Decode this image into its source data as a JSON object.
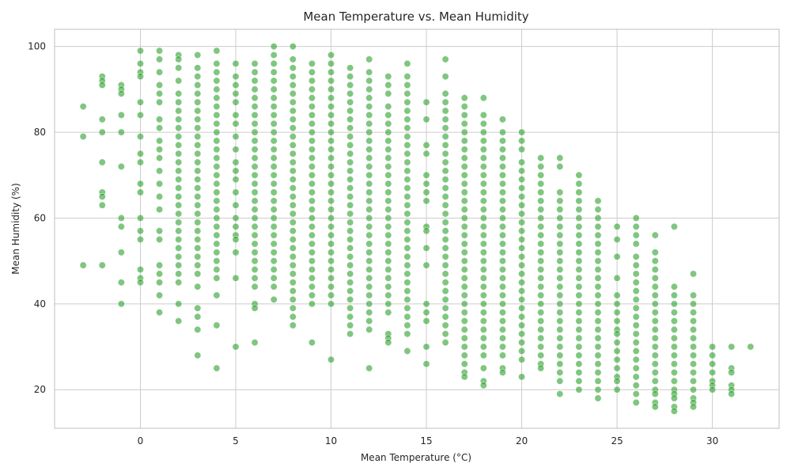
{
  "chart_data": {
    "type": "scatter",
    "title": "Mean Temperature vs. Mean Humidity",
    "xlabel": "Mean Temperature (°C)",
    "ylabel": "Mean Humidity (%)",
    "xlim": [
      -4.5,
      33.5
    ],
    "ylim": [
      11,
      104
    ],
    "xticks": [
      0,
      5,
      10,
      15,
      20,
      25,
      30
    ],
    "yticks": [
      20,
      40,
      60,
      80,
      100
    ],
    "grid": true,
    "legend": "none",
    "point_color": "#2ca02c",
    "point_alpha": 0.6,
    "columns": [
      {
        "x": -3,
        "y": [
          86,
          79,
          49
        ]
      },
      {
        "x": -2,
        "y": [
          93,
          92,
          91,
          83,
          80,
          73,
          66,
          65,
          63,
          49
        ]
      },
      {
        "x": -1,
        "y": [
          91,
          90,
          89,
          84,
          80,
          72,
          60,
          58,
          52,
          45,
          40
        ]
      },
      {
        "x": 0,
        "y": [
          99,
          96,
          94,
          93,
          87,
          84,
          79,
          75,
          73,
          68,
          66,
          60,
          57,
          55,
          48,
          46,
          45
        ]
      },
      {
        "x": 1,
        "y": [
          99,
          97,
          94,
          91,
          89,
          87,
          83,
          81,
          78,
          76,
          74,
          71,
          68,
          65,
          62,
          57,
          55,
          49,
          47,
          45,
          42,
          38
        ]
      },
      {
        "x": 2,
        "y": [
          98,
          97,
          95,
          92,
          89,
          87,
          85,
          83,
          81,
          79,
          77,
          75,
          73,
          71,
          69,
          67,
          65,
          63,
          61,
          59,
          57,
          55,
          53,
          51,
          49,
          47,
          45,
          40,
          36
        ]
      },
      {
        "x": 3,
        "y": [
          98,
          95,
          93,
          91,
          89,
          87,
          85,
          83,
          81,
          79,
          77,
          75,
          73,
          71,
          69,
          67,
          65,
          63,
          61,
          59,
          57,
          55,
          53,
          51,
          49,
          47,
          44,
          39,
          37,
          34,
          28
        ]
      },
      {
        "x": 4,
        "y": [
          99,
          96,
          94,
          92,
          90,
          88,
          86,
          84,
          82,
          80,
          78,
          76,
          74,
          72,
          70,
          68,
          66,
          64,
          62,
          60,
          58,
          56,
          54,
          52,
          50,
          48,
          46,
          42,
          35,
          25
        ]
      },
      {
        "x": 5,
        "y": [
          96,
          93,
          91,
          89,
          87,
          84,
          82,
          79,
          76,
          73,
          71,
          69,
          66,
          63,
          60,
          58,
          56,
          55,
          52,
          46,
          30
        ]
      },
      {
        "x": 6,
        "y": [
          96,
          94,
          92,
          90,
          88,
          86,
          84,
          82,
          80,
          78,
          76,
          74,
          72,
          70,
          68,
          66,
          64,
          62,
          60,
          58,
          56,
          54,
          52,
          50,
          48,
          46,
          44,
          40,
          39,
          31
        ]
      },
      {
        "x": 7,
        "y": [
          100,
          98,
          96,
          94,
          92,
          90,
          88,
          86,
          84,
          82,
          80,
          78,
          76,
          74,
          72,
          70,
          68,
          66,
          64,
          62,
          60,
          58,
          56,
          54,
          52,
          50,
          48,
          46,
          44,
          41
        ]
      },
      {
        "x": 8,
        "y": [
          100,
          97,
          95,
          93,
          91,
          89,
          87,
          85,
          83,
          81,
          79,
          77,
          75,
          73,
          71,
          69,
          67,
          65,
          63,
          61,
          59,
          57,
          55,
          53,
          51,
          49,
          47,
          45,
          43,
          41,
          39,
          37,
          35
        ]
      },
      {
        "x": 9,
        "y": [
          96,
          94,
          92,
          90,
          88,
          86,
          84,
          82,
          80,
          78,
          76,
          74,
          72,
          70,
          68,
          66,
          64,
          62,
          60,
          58,
          56,
          54,
          52,
          50,
          48,
          46,
          44,
          42,
          40,
          31
        ]
      },
      {
        "x": 10,
        "y": [
          98,
          96,
          94,
          92,
          90,
          88,
          86,
          84,
          82,
          80,
          78,
          76,
          74,
          72,
          70,
          68,
          66,
          64,
          62,
          60,
          58,
          56,
          54,
          52,
          50,
          48,
          46,
          44,
          42,
          40,
          27
        ]
      },
      {
        "x": 11,
        "y": [
          95,
          93,
          91,
          89,
          87,
          85,
          83,
          81,
          79,
          77,
          75,
          73,
          71,
          69,
          67,
          65,
          63,
          61,
          59,
          57,
          55,
          53,
          51,
          49,
          47,
          45,
          43,
          41,
          39,
          37,
          35,
          33
        ]
      },
      {
        "x": 12,
        "y": [
          97,
          94,
          92,
          90,
          88,
          86,
          84,
          82,
          80,
          78,
          76,
          74,
          72,
          70,
          68,
          66,
          64,
          62,
          60,
          58,
          56,
          54,
          52,
          50,
          48,
          46,
          44,
          42,
          40,
          38,
          36,
          34,
          25
        ]
      },
      {
        "x": 13,
        "y": [
          93,
          91,
          89,
          86,
          84,
          82,
          80,
          78,
          76,
          74,
          72,
          70,
          68,
          66,
          64,
          62,
          60,
          58,
          56,
          54,
          52,
          50,
          48,
          46,
          44,
          42,
          40,
          38,
          33,
          32,
          31
        ]
      },
      {
        "x": 14,
        "y": [
          96,
          93,
          91,
          89,
          87,
          85,
          83,
          81,
          79,
          77,
          75,
          73,
          71,
          69,
          67,
          65,
          63,
          61,
          59,
          57,
          55,
          53,
          51,
          49,
          47,
          45,
          43,
          41,
          39,
          37,
          35,
          33,
          29
        ]
      },
      {
        "x": 15,
        "y": [
          87,
          83,
          77,
          75,
          70,
          68,
          66,
          64,
          58,
          57,
          53,
          49,
          40,
          38,
          36,
          30,
          26
        ]
      },
      {
        "x": 16,
        "y": [
          97,
          93,
          89,
          87,
          85,
          83,
          81,
          79,
          77,
          75,
          73,
          71,
          69,
          67,
          65,
          63,
          61,
          59,
          57,
          55,
          53,
          51,
          49,
          47,
          45,
          43,
          41,
          39,
          37,
          35,
          33,
          31
        ]
      },
      {
        "x": 17,
        "y": [
          88,
          86,
          84,
          82,
          80,
          78,
          76,
          74,
          72,
          70,
          68,
          66,
          64,
          62,
          60,
          58,
          56,
          54,
          52,
          50,
          48,
          46,
          44,
          42,
          40,
          38,
          36,
          34,
          32,
          30,
          28,
          26,
          24,
          23
        ]
      },
      {
        "x": 18,
        "y": [
          88,
          84,
          82,
          80,
          78,
          76,
          74,
          72,
          70,
          68,
          66,
          64,
          62,
          60,
          58,
          56,
          54,
          52,
          50,
          48,
          46,
          44,
          42,
          40,
          38,
          36,
          34,
          32,
          30,
          28,
          25,
          22,
          21
        ]
      },
      {
        "x": 19,
        "y": [
          83,
          80,
          78,
          76,
          74,
          72,
          70,
          68,
          66,
          64,
          62,
          60,
          58,
          56,
          54,
          52,
          50,
          48,
          46,
          44,
          42,
          40,
          38,
          36,
          34,
          32,
          30,
          28,
          25,
          24
        ]
      },
      {
        "x": 20,
        "y": [
          80,
          78,
          76,
          73,
          71,
          69,
          67,
          65,
          63,
          61,
          59,
          57,
          55,
          53,
          51,
          49,
          47,
          45,
          43,
          41,
          39,
          37,
          35,
          33,
          31,
          29,
          27,
          23
        ]
      },
      {
        "x": 21,
        "y": [
          74,
          72,
          70,
          68,
          66,
          64,
          62,
          60,
          58,
          56,
          54,
          52,
          50,
          48,
          46,
          44,
          42,
          40,
          38,
          36,
          34,
          32,
          30,
          28,
          26,
          25
        ]
      },
      {
        "x": 22,
        "y": [
          74,
          72,
          66,
          64,
          62,
          60,
          58,
          56,
          54,
          52,
          50,
          48,
          46,
          44,
          42,
          40,
          38,
          36,
          34,
          32,
          30,
          28,
          26,
          24,
          22,
          19
        ]
      },
      {
        "x": 23,
        "y": [
          70,
          68,
          66,
          64,
          62,
          60,
          58,
          56,
          54,
          52,
          50,
          48,
          46,
          44,
          42,
          40,
          38,
          36,
          34,
          32,
          30,
          28,
          26,
          24,
          22,
          20
        ]
      },
      {
        "x": 24,
        "y": [
          64,
          62,
          60,
          58,
          56,
          54,
          52,
          50,
          48,
          46,
          44,
          42,
          40,
          38,
          36,
          34,
          32,
          30,
          28,
          26,
          24,
          22,
          20,
          18
        ]
      },
      {
        "x": 25,
        "y": [
          58,
          55,
          51,
          46,
          42,
          40,
          38,
          36,
          34,
          33,
          31,
          29,
          27,
          25,
          23,
          22,
          20
        ]
      },
      {
        "x": 26,
        "y": [
          60,
          58,
          56,
          54,
          51,
          49,
          47,
          45,
          43,
          41,
          39,
          37,
          35,
          33,
          31,
          29,
          27,
          25,
          23,
          21,
          19,
          17
        ]
      },
      {
        "x": 27,
        "y": [
          56,
          52,
          50,
          48,
          46,
          44,
          42,
          40,
          38,
          36,
          34,
          32,
          30,
          28,
          26,
          24,
          22,
          20,
          19,
          17,
          16
        ]
      },
      {
        "x": 28,
        "y": [
          58,
          44,
          42,
          40,
          38,
          36,
          34,
          32,
          30,
          28,
          26,
          24,
          22,
          20,
          19,
          18,
          16,
          15
        ]
      },
      {
        "x": 29,
        "y": [
          47,
          42,
          40,
          38,
          36,
          34,
          32,
          30,
          28,
          26,
          24,
          22,
          20,
          18,
          17,
          16
        ]
      },
      {
        "x": 30,
        "y": [
          30,
          28,
          26,
          24,
          22,
          21,
          20
        ]
      },
      {
        "x": 31,
        "y": [
          30,
          25,
          24,
          21,
          20,
          19
        ]
      },
      {
        "x": 32,
        "y": [
          30
        ]
      }
    ]
  }
}
